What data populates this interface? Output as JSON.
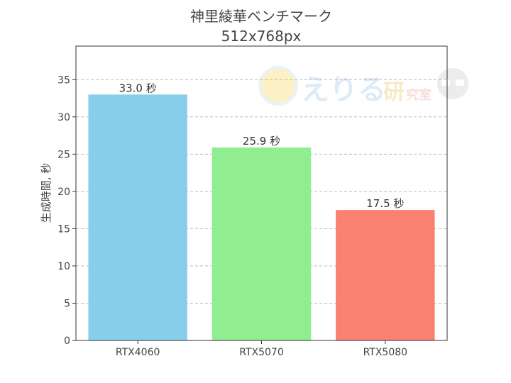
{
  "chart_data": {
    "type": "bar",
    "title": "神里綾華ベンチマーク",
    "subtitle": "512x768px",
    "xlabel": "",
    "ylabel": "生成時間, 秒",
    "categories": [
      "RTX4060",
      "RTX5070",
      "RTX5080"
    ],
    "values": [
      33.0,
      25.9,
      17.5
    ],
    "value_labels": [
      "33.0 秒",
      "25.9 秒",
      "17.5 秒"
    ],
    "colors": [
      "#87ceeb",
      "#90ee90",
      "#fa8072"
    ],
    "ylim": [
      0,
      39.5
    ],
    "yticks": [
      0,
      5,
      10,
      15,
      20,
      25,
      30,
      35
    ],
    "grid": "y-dashed",
    "legend": "none"
  },
  "watermark": {
    "text_main": "えりる",
    "text_mid": "研",
    "text_small": "究室"
  }
}
